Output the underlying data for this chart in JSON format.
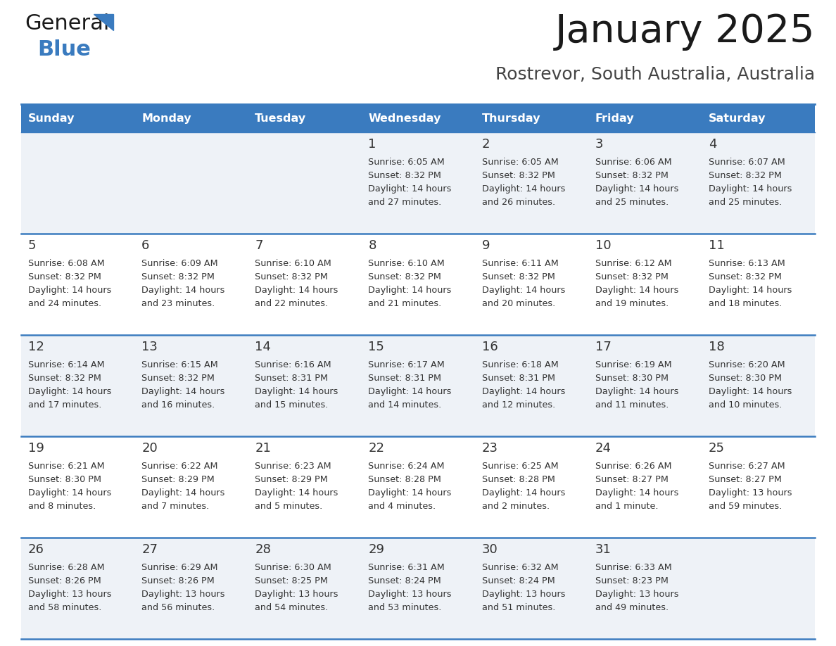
{
  "title": "January 2025",
  "subtitle": "Rostrevor, South Australia, Australia",
  "header_color": "#3a7bbf",
  "header_text_color": "#ffffff",
  "row_bg_odd": "#eef2f7",
  "row_bg_even": "#ffffff",
  "border_color": "#3a7bbf",
  "text_color": "#333333",
  "day_names": [
    "Sunday",
    "Monday",
    "Tuesday",
    "Wednesday",
    "Thursday",
    "Friday",
    "Saturday"
  ],
  "logo_color": "#3a7bbf",
  "logo_black": "#1a1a1a",
  "title_fontsize": 40,
  "subtitle_fontsize": 18,
  "header_fontsize": 11.5,
  "daynum_fontsize": 13,
  "cell_fontsize": 9.2,
  "days": [
    {
      "day": 1,
      "col": 3,
      "row": 0,
      "sunrise": "6:05 AM",
      "sunset": "8:32 PM",
      "dh": 14,
      "dm": 27
    },
    {
      "day": 2,
      "col": 4,
      "row": 0,
      "sunrise": "6:05 AM",
      "sunset": "8:32 PM",
      "dh": 14,
      "dm": 26
    },
    {
      "day": 3,
      "col": 5,
      "row": 0,
      "sunrise": "6:06 AM",
      "sunset": "8:32 PM",
      "dh": 14,
      "dm": 25
    },
    {
      "day": 4,
      "col": 6,
      "row": 0,
      "sunrise": "6:07 AM",
      "sunset": "8:32 PM",
      "dh": 14,
      "dm": 25
    },
    {
      "day": 5,
      "col": 0,
      "row": 1,
      "sunrise": "6:08 AM",
      "sunset": "8:32 PM",
      "dh": 14,
      "dm": 24
    },
    {
      "day": 6,
      "col": 1,
      "row": 1,
      "sunrise": "6:09 AM",
      "sunset": "8:32 PM",
      "dh": 14,
      "dm": 23
    },
    {
      "day": 7,
      "col": 2,
      "row": 1,
      "sunrise": "6:10 AM",
      "sunset": "8:32 PM",
      "dh": 14,
      "dm": 22
    },
    {
      "day": 8,
      "col": 3,
      "row": 1,
      "sunrise": "6:10 AM",
      "sunset": "8:32 PM",
      "dh": 14,
      "dm": 21
    },
    {
      "day": 9,
      "col": 4,
      "row": 1,
      "sunrise": "6:11 AM",
      "sunset": "8:32 PM",
      "dh": 14,
      "dm": 20
    },
    {
      "day": 10,
      "col": 5,
      "row": 1,
      "sunrise": "6:12 AM",
      "sunset": "8:32 PM",
      "dh": 14,
      "dm": 19
    },
    {
      "day": 11,
      "col": 6,
      "row": 1,
      "sunrise": "6:13 AM",
      "sunset": "8:32 PM",
      "dh": 14,
      "dm": 18
    },
    {
      "day": 12,
      "col": 0,
      "row": 2,
      "sunrise": "6:14 AM",
      "sunset": "8:32 PM",
      "dh": 14,
      "dm": 17
    },
    {
      "day": 13,
      "col": 1,
      "row": 2,
      "sunrise": "6:15 AM",
      "sunset": "8:32 PM",
      "dh": 14,
      "dm": 16
    },
    {
      "day": 14,
      "col": 2,
      "row": 2,
      "sunrise": "6:16 AM",
      "sunset": "8:31 PM",
      "dh": 14,
      "dm": 15
    },
    {
      "day": 15,
      "col": 3,
      "row": 2,
      "sunrise": "6:17 AM",
      "sunset": "8:31 PM",
      "dh": 14,
      "dm": 14
    },
    {
      "day": 16,
      "col": 4,
      "row": 2,
      "sunrise": "6:18 AM",
      "sunset": "8:31 PM",
      "dh": 14,
      "dm": 12
    },
    {
      "day": 17,
      "col": 5,
      "row": 2,
      "sunrise": "6:19 AM",
      "sunset": "8:30 PM",
      "dh": 14,
      "dm": 11
    },
    {
      "day": 18,
      "col": 6,
      "row": 2,
      "sunrise": "6:20 AM",
      "sunset": "8:30 PM",
      "dh": 14,
      "dm": 10
    },
    {
      "day": 19,
      "col": 0,
      "row": 3,
      "sunrise": "6:21 AM",
      "sunset": "8:30 PM",
      "dh": 14,
      "dm": 8
    },
    {
      "day": 20,
      "col": 1,
      "row": 3,
      "sunrise": "6:22 AM",
      "sunset": "8:29 PM",
      "dh": 14,
      "dm": 7
    },
    {
      "day": 21,
      "col": 2,
      "row": 3,
      "sunrise": "6:23 AM",
      "sunset": "8:29 PM",
      "dh": 14,
      "dm": 5
    },
    {
      "day": 22,
      "col": 3,
      "row": 3,
      "sunrise": "6:24 AM",
      "sunset": "8:28 PM",
      "dh": 14,
      "dm": 4
    },
    {
      "day": 23,
      "col": 4,
      "row": 3,
      "sunrise": "6:25 AM",
      "sunset": "8:28 PM",
      "dh": 14,
      "dm": 2
    },
    {
      "day": 24,
      "col": 5,
      "row": 3,
      "sunrise": "6:26 AM",
      "sunset": "8:27 PM",
      "dh": 14,
      "dm": 1
    },
    {
      "day": 25,
      "col": 6,
      "row": 3,
      "sunrise": "6:27 AM",
      "sunset": "8:27 PM",
      "dh": 13,
      "dm": 59
    },
    {
      "day": 26,
      "col": 0,
      "row": 4,
      "sunrise": "6:28 AM",
      "sunset": "8:26 PM",
      "dh": 13,
      "dm": 58
    },
    {
      "day": 27,
      "col": 1,
      "row": 4,
      "sunrise": "6:29 AM",
      "sunset": "8:26 PM",
      "dh": 13,
      "dm": 56
    },
    {
      "day": 28,
      "col": 2,
      "row": 4,
      "sunrise": "6:30 AM",
      "sunset": "8:25 PM",
      "dh": 13,
      "dm": 54
    },
    {
      "day": 29,
      "col": 3,
      "row": 4,
      "sunrise": "6:31 AM",
      "sunset": "8:24 PM",
      "dh": 13,
      "dm": 53
    },
    {
      "day": 30,
      "col": 4,
      "row": 4,
      "sunrise": "6:32 AM",
      "sunset": "8:24 PM",
      "dh": 13,
      "dm": 51
    },
    {
      "day": 31,
      "col": 5,
      "row": 4,
      "sunrise": "6:33 AM",
      "sunset": "8:23 PM",
      "dh": 13,
      "dm": 49
    }
  ]
}
